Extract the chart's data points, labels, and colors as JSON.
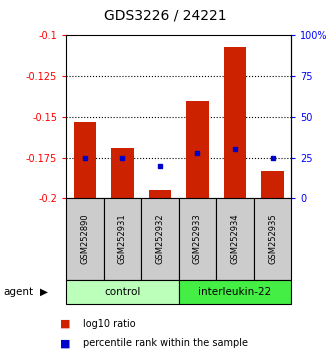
{
  "title": "GDS3226 / 24221",
  "samples": [
    "GSM252890",
    "GSM252931",
    "GSM252932",
    "GSM252933",
    "GSM252934",
    "GSM252935"
  ],
  "bar_tops": [
    -0.153,
    -0.169,
    -0.195,
    -0.14,
    -0.107,
    -0.183
  ],
  "bar_bottom": -0.2,
  "percentile_ranks": [
    25,
    25,
    20,
    28,
    30,
    25
  ],
  "ylim": [
    -0.2,
    -0.1
  ],
  "yticks_left": [
    -0.2,
    -0.175,
    -0.15,
    -0.125,
    -0.1
  ],
  "yticks_right": [
    0,
    25,
    50,
    75,
    100
  ],
  "bar_color": "#cc2200",
  "dot_color": "#0000cc",
  "bar_width": 0.6,
  "control_color": "#bbffbb",
  "interleukin_color": "#44ee44",
  "sample_bg_color": "#cccccc",
  "control_label": "control",
  "interleukin_label": "interleukin-22",
  "agent_label": "agent",
  "legend_ratio": "log10 ratio",
  "legend_rank": "percentile rank within the sample",
  "title_fontsize": 10,
  "tick_fontsize": 7,
  "sample_fontsize": 6,
  "group_fontsize": 7.5,
  "legend_fontsize": 7
}
